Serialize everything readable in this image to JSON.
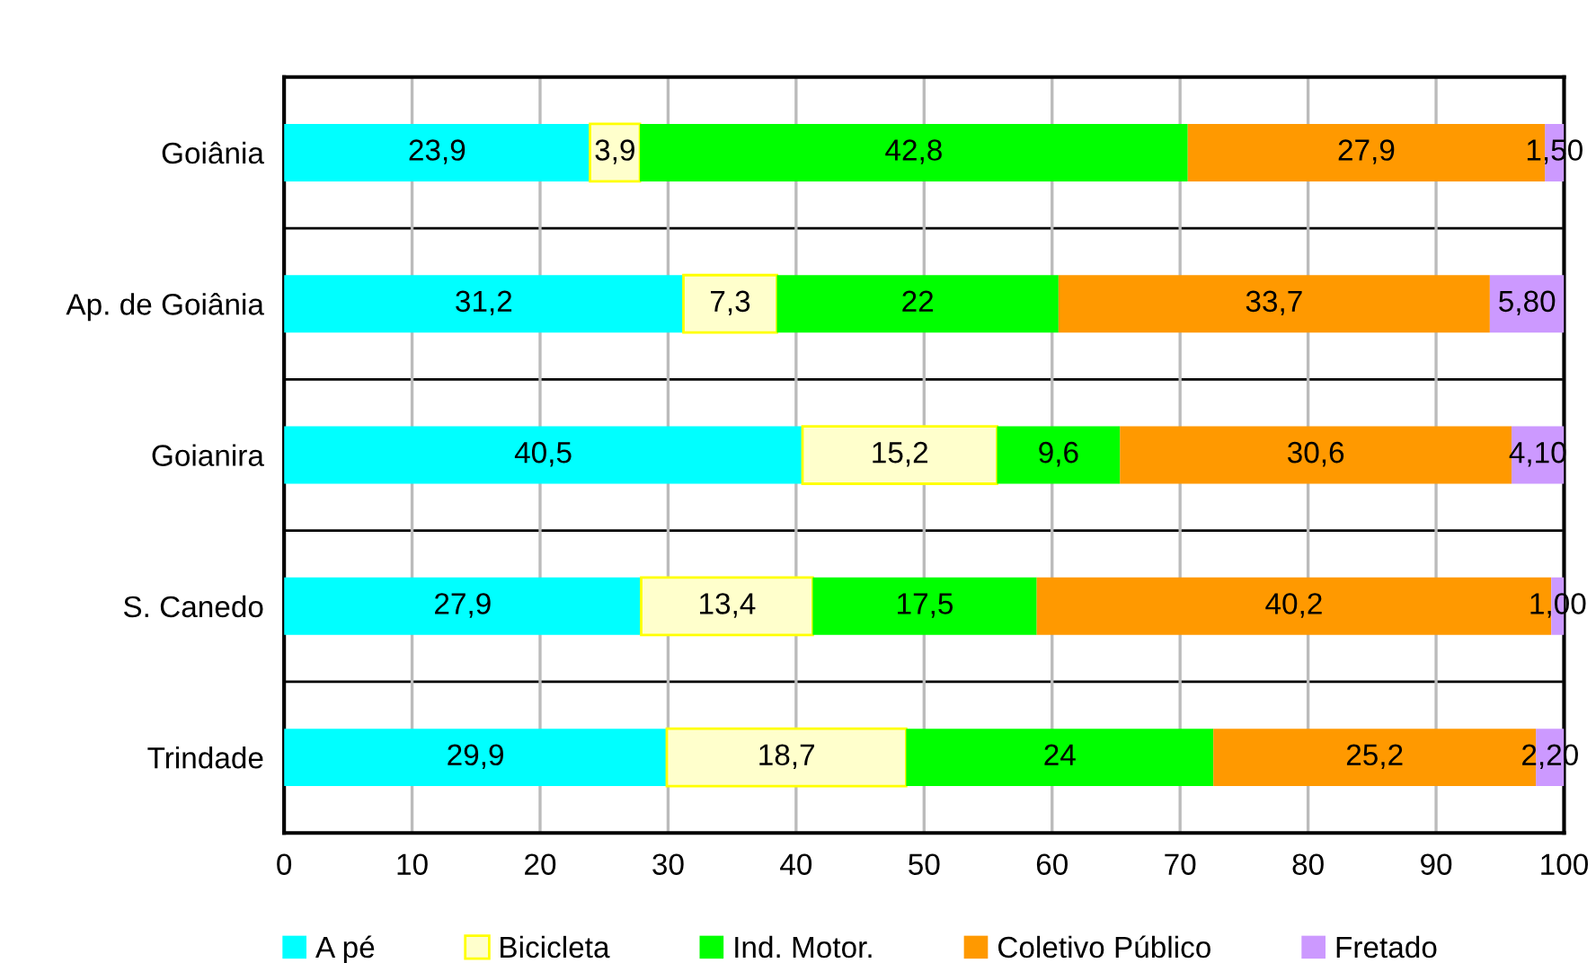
{
  "chart_data": {
    "type": "bar",
    "orientation": "horizontal",
    "stacked": true,
    "categories": [
      "Goiânia",
      "Ap. de Goiânia",
      "Goianira",
      "S. Canedo",
      "Trindade"
    ],
    "series": [
      {
        "name": "A pé",
        "color": "#00ffff",
        "values": [
          23.9,
          31.2,
          40.5,
          27.9,
          29.9
        ],
        "value_labels": [
          "23,9",
          "31,2",
          "40,5",
          "27,9",
          "29,9"
        ]
      },
      {
        "name": "Bicicleta",
        "color": "#ffffcc",
        "values": [
          3.9,
          7.3,
          15.2,
          13.4,
          18.7
        ],
        "value_labels": [
          "3,9",
          "7,3",
          "15,2",
          "13,4",
          "18,7"
        ]
      },
      {
        "name": "Ind. Motor.",
        "color": "#00ff00",
        "values": [
          42.8,
          22,
          9.6,
          17.5,
          24
        ],
        "value_labels": [
          "42,8",
          "22",
          "9,6",
          "17,5",
          "24"
        ]
      },
      {
        "name": "Coletivo Público",
        "color": "#ff9900",
        "values": [
          27.9,
          33.7,
          30.6,
          40.2,
          25.2
        ],
        "value_labels": [
          "27,9",
          "33,7",
          "30,6",
          "40,2",
          "25,2"
        ]
      },
      {
        "name": "Fretado",
        "color": "#cc99ff",
        "values": [
          1.5,
          5.8,
          4.1,
          1.0,
          2.2
        ],
        "value_labels": [
          "1,50",
          "5,80",
          "4,10",
          "1,00",
          "2,20"
        ]
      }
    ],
    "xlim": [
      0,
      100
    ],
    "xticks": [
      0,
      10,
      20,
      30,
      40,
      50,
      60,
      70,
      80,
      90,
      100
    ],
    "grid": true,
    "legend": "bottom"
  }
}
